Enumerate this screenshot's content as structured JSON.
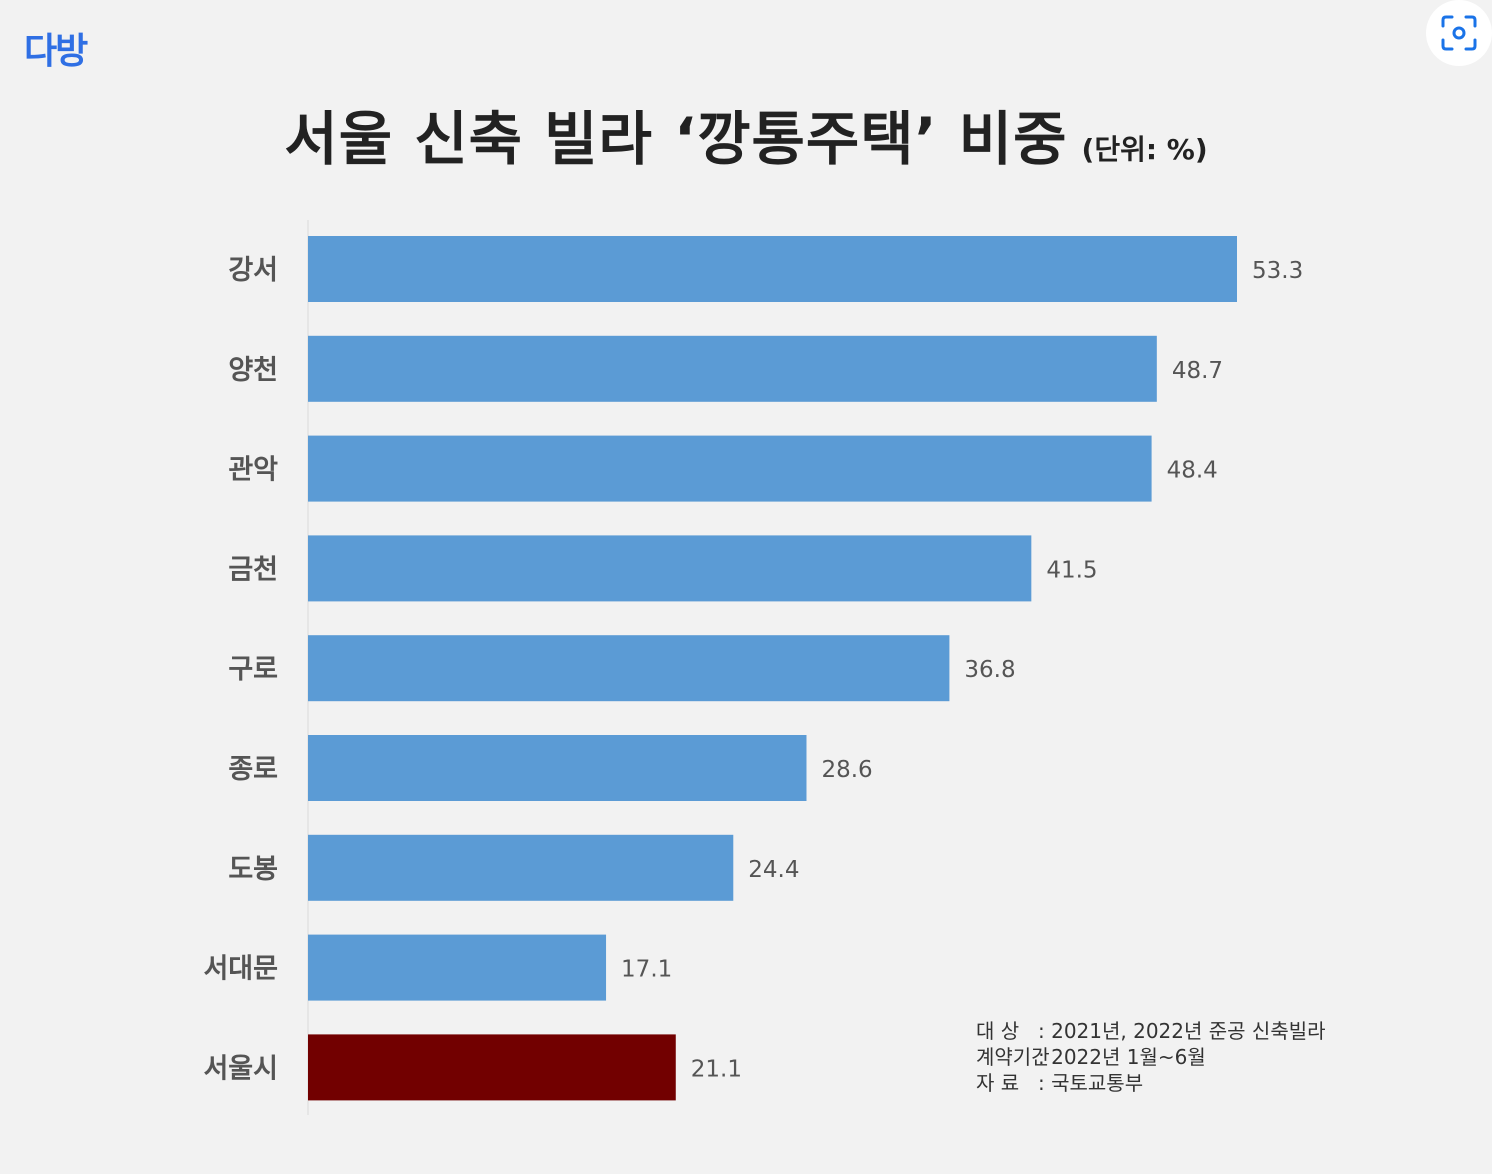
{
  "brand": {
    "logo_text": "다방"
  },
  "lens_button": {
    "icon": "lens-scan-icon"
  },
  "chart_data": {
    "type": "bar",
    "orientation": "horizontal",
    "title": "서울 신축 빌라 ‘깡통주택’ 비중",
    "unit_label": "(단위: %)",
    "categories": [
      "강서",
      "양천",
      "관악",
      "금천",
      "구로",
      "종로",
      "도봉",
      "서대문",
      "서울시"
    ],
    "values": [
      53.3,
      48.7,
      48.4,
      41.5,
      36.8,
      28.6,
      24.4,
      17.1,
      21.1
    ],
    "value_labels": [
      "53.3",
      "48.7",
      "48.4",
      "41.5",
      "36.8",
      "28.6",
      "24.4",
      "17.1",
      "21.1"
    ],
    "colors": [
      "#5b9bd5",
      "#5b9bd5",
      "#5b9bd5",
      "#5b9bd5",
      "#5b9bd5",
      "#5b9bd5",
      "#5b9bd5",
      "#5b9bd5",
      "#720000"
    ],
    "xlim": [
      0,
      53.3
    ],
    "grid": false,
    "legend": "none"
  },
  "footnote": {
    "rows": [
      {
        "label": "대 상",
        "text": ": 2021년, 2022년 준공 신축빌라"
      },
      {
        "label": "계약기간",
        "text": ": 2022년 1월~6월"
      },
      {
        "label": "자 료",
        "text": ": 국토교통부"
      }
    ]
  }
}
